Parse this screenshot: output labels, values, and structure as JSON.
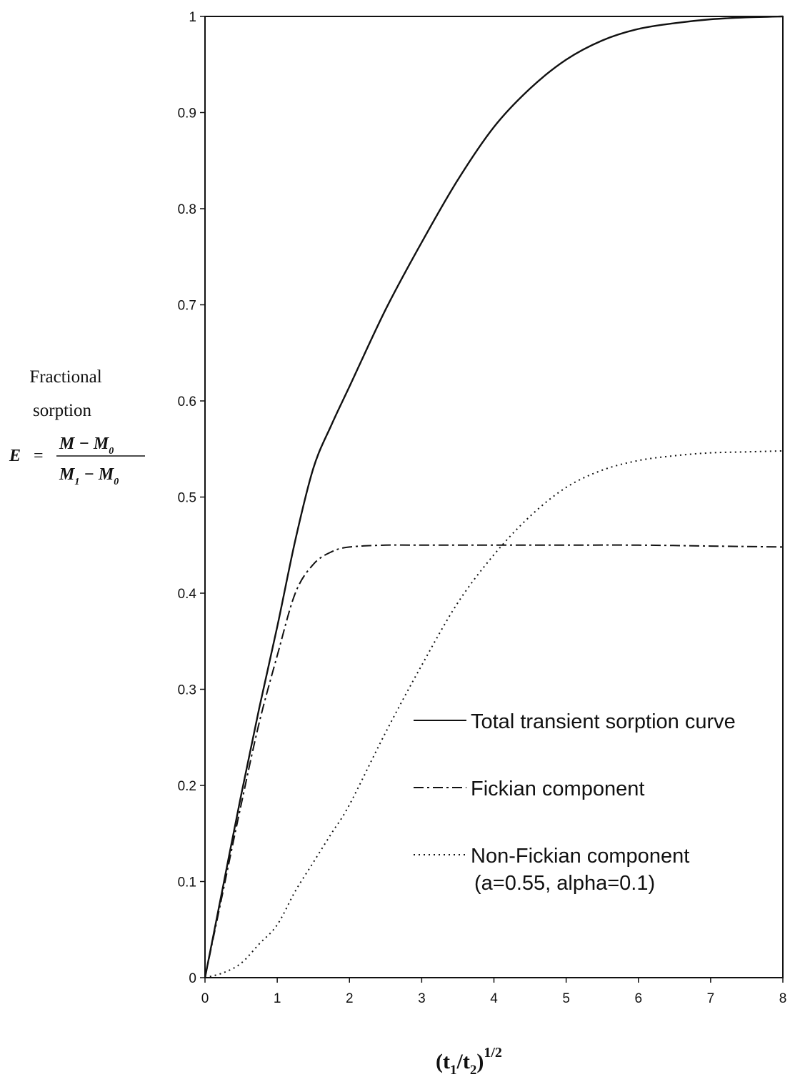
{
  "chart_data": {
    "type": "line",
    "xlabel": "(t1/t2)",
    "xlabel_base": "(t",
    "xlabel_sub1": "1",
    "xlabel_mid": "/t",
    "xlabel_sub2": "2",
    "xlabel_close": ")",
    "xlabel_sup": "1/2",
    "ylabel_line1": "Fractional",
    "ylabel_line2": "sorption",
    "formula": {
      "lhs": "E",
      "equals": "=",
      "numerator": "M − M",
      "numerator_sub": "0",
      "denominator": "M",
      "denominator_sub1": "1",
      "denominator_mid": " − M",
      "denominator_sub2": "0"
    },
    "xlim": [
      0,
      8
    ],
    "ylim": [
      0,
      1
    ],
    "xticks": [
      "0",
      "1",
      "2",
      "3",
      "4",
      "5",
      "6",
      "7",
      "8"
    ],
    "yticks": [
      "0",
      "0.1",
      "0.2",
      "0.3",
      "0.4",
      "0.5",
      "0.6",
      "0.7",
      "0.8",
      "0.9",
      "1"
    ],
    "grid": false,
    "legend_position": "lower-right",
    "series": [
      {
        "name": "Total transient sorption curve",
        "style": "solid",
        "color": "#111111",
        "x": [
          0,
          0.25,
          0.5,
          0.75,
          1.0,
          1.25,
          1.5,
          1.75,
          2.0,
          2.5,
          3.0,
          3.5,
          4.0,
          4.5,
          5.0,
          5.5,
          6.0,
          6.5,
          7.0,
          7.5,
          8.0
        ],
        "y": [
          0,
          0.095,
          0.19,
          0.28,
          0.365,
          0.455,
          0.53,
          0.575,
          0.615,
          0.695,
          0.765,
          0.83,
          0.885,
          0.925,
          0.955,
          0.975,
          0.987,
          0.993,
          0.997,
          0.999,
          1.0
        ]
      },
      {
        "name": "Fickian component",
        "style": "dashdot",
        "color": "#111111",
        "x": [
          0,
          0.25,
          0.5,
          0.75,
          1.0,
          1.25,
          1.5,
          1.75,
          2.0,
          2.5,
          3.0,
          4.0,
          5.0,
          6.0,
          7.0,
          8.0
        ],
        "y": [
          0,
          0.09,
          0.18,
          0.265,
          0.335,
          0.4,
          0.43,
          0.443,
          0.448,
          0.45,
          0.45,
          0.45,
          0.45,
          0.45,
          0.449,
          0.448
        ]
      },
      {
        "name": "Non-Fickian component",
        "name_line2": "(a=0.55, alpha=0.1)",
        "style": "dotted",
        "color": "#111111",
        "x": [
          0,
          0.25,
          0.5,
          0.75,
          1.0,
          1.25,
          1.5,
          1.75,
          2.0,
          2.5,
          3.0,
          3.5,
          4.0,
          4.5,
          5.0,
          5.5,
          6.0,
          6.5,
          7.0,
          7.5,
          8.0
        ],
        "y": [
          0,
          0.005,
          0.015,
          0.035,
          0.055,
          0.09,
          0.12,
          0.15,
          0.18,
          0.255,
          0.325,
          0.39,
          0.44,
          0.48,
          0.51,
          0.528,
          0.538,
          0.543,
          0.546,
          0.547,
          0.548
        ]
      }
    ]
  }
}
